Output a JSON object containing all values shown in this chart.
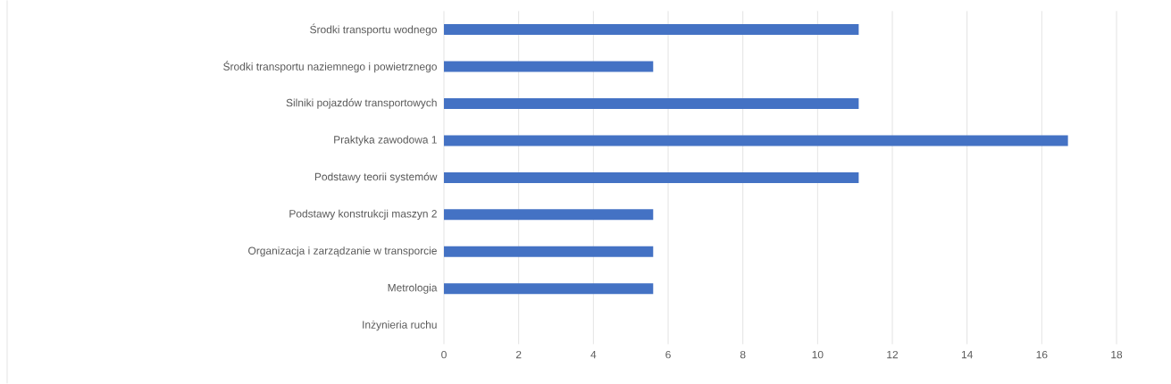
{
  "chart_data": {
    "type": "bar",
    "orientation": "horizontal",
    "categories": [
      "Środki transportu wodnego",
      "Środki transportu naziemnego i powietrznego",
      "Silniki pojazdów transportowych",
      "Praktyka zawodowa 1",
      "Podstawy teorii systemów",
      "Podstawy konstrukcji maszyn 2",
      "Organizacja i zarządzanie w transporcie",
      "Metrologia",
      "Inżynieria ruchu"
    ],
    "values": [
      11.1,
      5.6,
      11.1,
      16.7,
      11.1,
      5.6,
      5.6,
      5.6,
      0
    ],
    "color": "#4472c4",
    "xlim": [
      0,
      18
    ],
    "xticks": [
      0,
      2,
      4,
      6,
      8,
      10,
      12,
      14,
      16,
      18
    ],
    "grid": "x"
  }
}
